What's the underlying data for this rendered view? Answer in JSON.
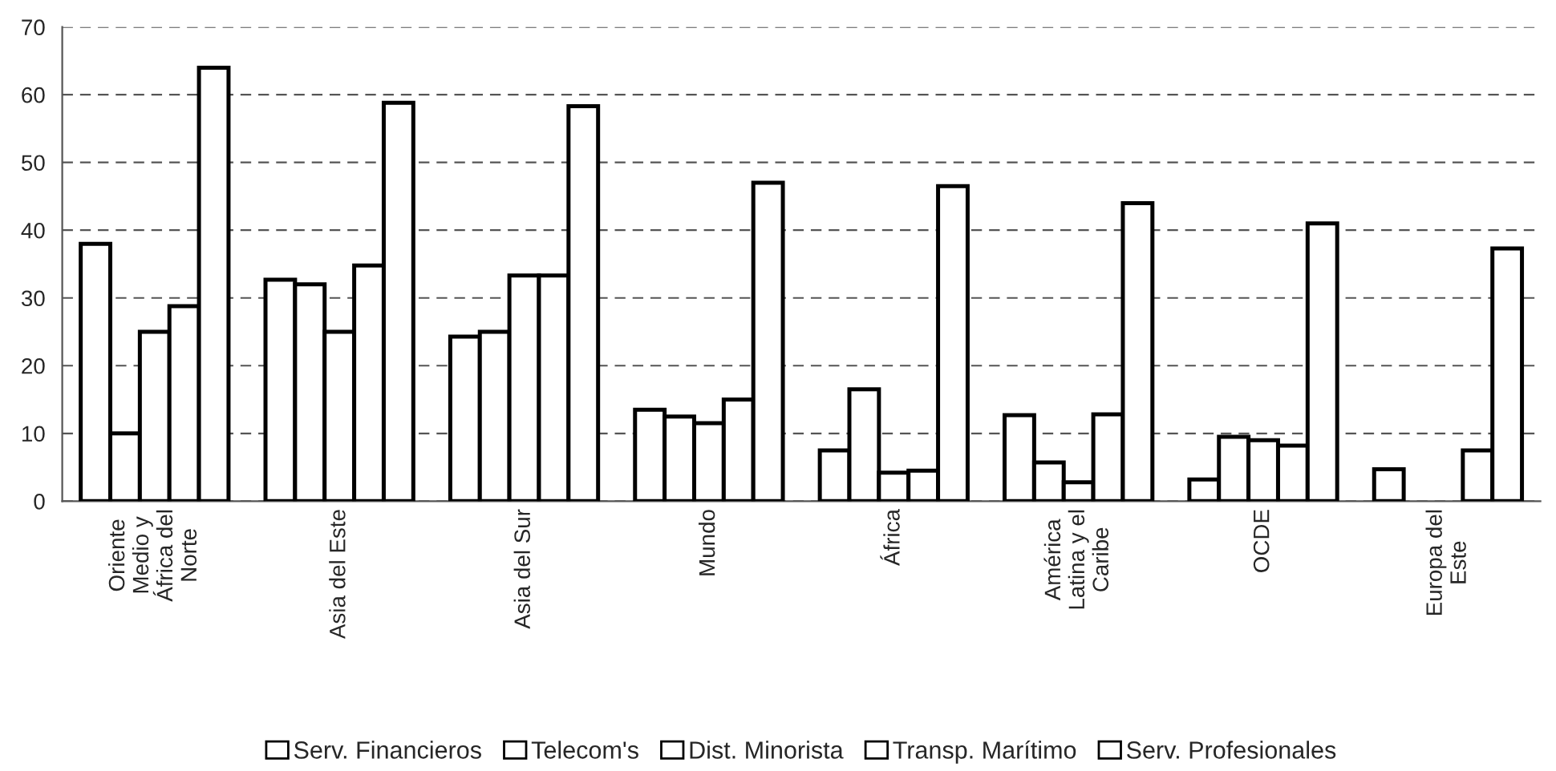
{
  "chart_data": {
    "type": "bar",
    "categories": [
      "Oriente\nMedio y\nÁfrica del\nNorte",
      "Asia del Este",
      "Asia del Sur",
      "Mundo",
      "África",
      "América\nLatina y el\nCaribe",
      "OCDE",
      "Europa del\nEste"
    ],
    "series": [
      {
        "name": "Serv. Financieros",
        "color": "#ffffff",
        "values": [
          38,
          32.7,
          24.3,
          13.5,
          7.5,
          12.7,
          3.2,
          4.7
        ]
      },
      {
        "name": "Telecom's",
        "color": "#ffffff",
        "values": [
          10,
          32,
          25,
          12.5,
          16.5,
          5.7,
          9.5,
          null
        ]
      },
      {
        "name": "Dist. Minorista",
        "color": "#ffffff",
        "values": [
          25,
          25,
          33.3,
          11.5,
          4.2,
          2.8,
          9,
          null
        ]
      },
      {
        "name": "Transp. Marítimo",
        "color": "#ffffff",
        "values": [
          28.8,
          34.8,
          33.3,
          15,
          4.5,
          12.8,
          8.2,
          7.5
        ]
      },
      {
        "name": "Serv. Profesionales",
        "color": "#ffffff",
        "values": [
          64,
          58.8,
          58.3,
          47,
          46.5,
          44,
          41,
          37.3
        ]
      }
    ],
    "ylim": [
      0,
      70
    ],
    "yticks": [
      0,
      10,
      20,
      30,
      40,
      50,
      60,
      70
    ],
    "grid": "y",
    "legend": "bottom"
  }
}
